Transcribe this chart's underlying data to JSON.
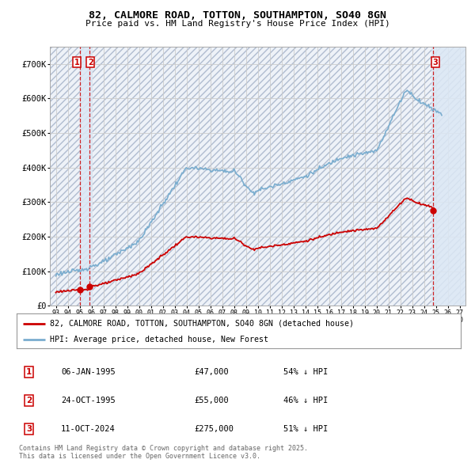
{
  "title": "82, CALMORE ROAD, TOTTON, SOUTHAMPTON, SO40 8GN",
  "subtitle": "Price paid vs. HM Land Registry's House Price Index (HPI)",
  "background_color": "#ffffff",
  "plot_bg_color": "#eef2f8",
  "grid_color": "#cccccc",
  "ylim": [
    0,
    750000
  ],
  "yticks": [
    0,
    100000,
    200000,
    300000,
    400000,
    500000,
    600000,
    700000
  ],
  "ytick_labels": [
    "£0",
    "£100K",
    "£200K",
    "£300K",
    "£400K",
    "£500K",
    "£600K",
    "£700K"
  ],
  "xlim_start": 1992.5,
  "xlim_end": 2027.5,
  "sale_dates": [
    1995.014,
    1995.814,
    2024.781
  ],
  "sale_prices": [
    47000,
    55000,
    275000
  ],
  "sale_labels": [
    "1",
    "2",
    "3"
  ],
  "sale_color": "#cc0000",
  "hpi_line_color": "#7aadcf",
  "legend_label_red": "82, CALMORE ROAD, TOTTON, SOUTHAMPTON, SO40 8GN (detached house)",
  "legend_label_blue": "HPI: Average price, detached house, New Forest",
  "table_entries": [
    {
      "num": "1",
      "date": "06-JAN-1995",
      "price": "£47,000",
      "pct": "54% ↓ HPI"
    },
    {
      "num": "2",
      "date": "24-OCT-1995",
      "price": "£55,000",
      "pct": "46% ↓ HPI"
    },
    {
      "num": "3",
      "date": "11-OCT-2024",
      "price": "£275,000",
      "pct": "51% ↓ HPI"
    }
  ],
  "footer": "Contains HM Land Registry data © Crown copyright and database right 2025.\nThis data is licensed under the Open Government Licence v3.0."
}
